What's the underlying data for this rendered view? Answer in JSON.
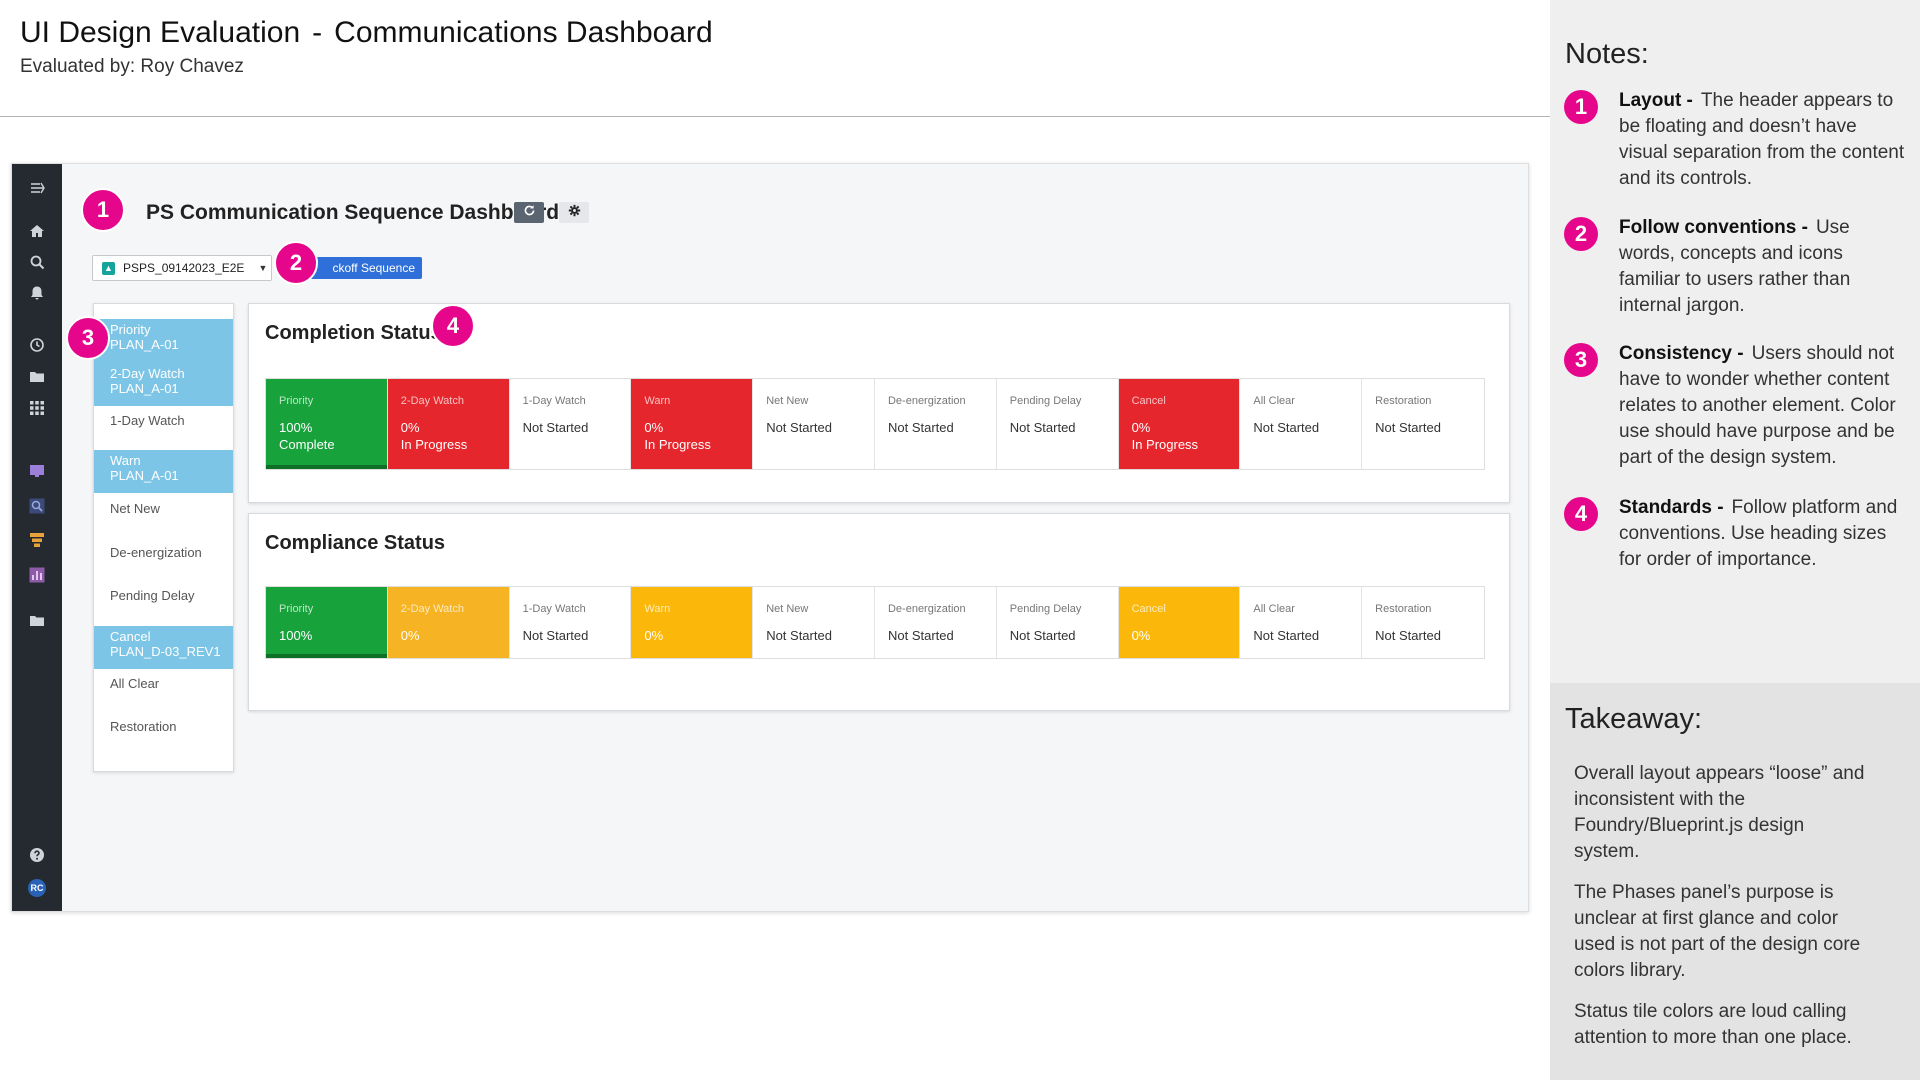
{
  "header": {
    "title": "UI Design Evaluation",
    "separator": "-",
    "subtitle_page": "Communications Dashboard",
    "evaluated_by": "Evaluated by:  Roy Chavez"
  },
  "notes": {
    "heading": "Notes:",
    "items": [
      {
        "num": "1",
        "label": "Layout -",
        "text": "The header appears to be floating and doesn’t have visual separation from the content and its controls."
      },
      {
        "num": "2",
        "label": "Follow conventions -",
        "text": "Use words, concepts and icons familiar to users rather than internal jargon."
      },
      {
        "num": "3",
        "label": "Consistency -",
        "text": "Users should not have to wonder whether content relates to another element. Color use should have purpose and be part of the design system."
      },
      {
        "num": "4",
        "label": "Standards -",
        "text": "Follow platform and conventions. Use heading sizes for order of importance."
      }
    ]
  },
  "takeaway": {
    "heading": "Takeaway:",
    "paragraphs": [
      "Overall layout appears “loose” and inconsistent with the Foundry/Blueprint.js design system.",
      "The Phases panel’s purpose is unclear at first glance and color used is not part of the design core colors library.",
      "Status tile colors are loud calling attention to more than one place."
    ]
  },
  "app": {
    "dashboard_title": "PS Communication Sequence Dashboard",
    "plan_select_value": "PSPS_09142023_E2E",
    "kickoff_label": "ckoff Sequence",
    "user_initials": "RC",
    "rail_icons": [
      "menu-expand-icon",
      "home-icon",
      "search-icon",
      "bell-icon",
      "history-icon",
      "folder-open-icon",
      "grid-icon",
      "monitor-icon",
      "zoom-icon",
      "layers-icon",
      "bar-chart-icon",
      "folder-icon",
      "help-icon"
    ],
    "phases": [
      {
        "label": "Priority",
        "plan": "PLAN_A-01",
        "highlight": true
      },
      {
        "label": "2-Day Watch",
        "plan": "PLAN_A-01",
        "highlight": true
      },
      {
        "label": "1-Day Watch",
        "plan": "",
        "highlight": false
      },
      {
        "label": "Warn",
        "plan": "PLAN_A-01",
        "highlight": true
      },
      {
        "label": "Net New",
        "plan": "",
        "highlight": false
      },
      {
        "label": "De-energization",
        "plan": "",
        "highlight": false
      },
      {
        "label": "Pending Delay",
        "plan": "",
        "highlight": false
      },
      {
        "label": "Cancel",
        "plan": "PLAN_D-03_REV1",
        "highlight": true
      },
      {
        "label": "All Clear",
        "plan": "",
        "highlight": false
      },
      {
        "label": "Restoration",
        "plan": "",
        "highlight": false
      }
    ],
    "completion": {
      "title": "Completion Status",
      "tiles": [
        {
          "label": "Priority",
          "value": "100%",
          "status": "Complete",
          "color": "#17a23b"
        },
        {
          "label": "2-Day Watch",
          "value": "0%",
          "status": "In Progress",
          "color": "#e5262c"
        },
        {
          "label": "1-Day Watch",
          "value": "Not Started",
          "status": "",
          "color": "#ffffff"
        },
        {
          "label": "Warn",
          "value": "0%",
          "status": "In Progress",
          "color": "#e5262c"
        },
        {
          "label": "Net New",
          "value": "Not Started",
          "status": "",
          "color": "#ffffff"
        },
        {
          "label": "De-energization",
          "value": "Not Started",
          "status": "",
          "color": "#ffffff"
        },
        {
          "label": "Pending Delay",
          "value": "Not Started",
          "status": "",
          "color": "#ffffff"
        },
        {
          "label": "Cancel",
          "value": "0%",
          "status": "In Progress",
          "color": "#e5262c"
        },
        {
          "label": "All Clear",
          "value": "Not Started",
          "status": "",
          "color": "#ffffff"
        },
        {
          "label": "Restoration",
          "value": "Not Started",
          "status": "",
          "color": "#ffffff"
        }
      ]
    },
    "compliance": {
      "title": "Compliance Status",
      "tiles": [
        {
          "label": "Priority",
          "value": "100%",
          "color": "#17a23b"
        },
        {
          "label": "2-Day Watch",
          "value": "0%",
          "color": "#f6b323"
        },
        {
          "label": "1-Day Watch",
          "value": "Not Started",
          "color": "#ffffff"
        },
        {
          "label": "Warn",
          "value": "0%",
          "color": "#fbb80b"
        },
        {
          "label": "Net New",
          "value": "Not Started",
          "color": "#ffffff"
        },
        {
          "label": "De-energization",
          "value": "Not Started",
          "color": "#ffffff"
        },
        {
          "label": "Pending Delay",
          "value": "Not Started",
          "color": "#ffffff"
        },
        {
          "label": "Cancel",
          "value": "0%",
          "color": "#fbb80b"
        },
        {
          "label": "All Clear",
          "value": "Not Started",
          "color": "#ffffff"
        },
        {
          "label": "Restoration",
          "value": "Not Started",
          "color": "#ffffff"
        }
      ]
    }
  },
  "markers": [
    "1",
    "2",
    "3",
    "4"
  ],
  "colors": {
    "annotation_pink": "#e6068b",
    "phase_highlight": "#7cc5e6",
    "rail": "#252a31",
    "primary_button": "#2e6fd9"
  }
}
